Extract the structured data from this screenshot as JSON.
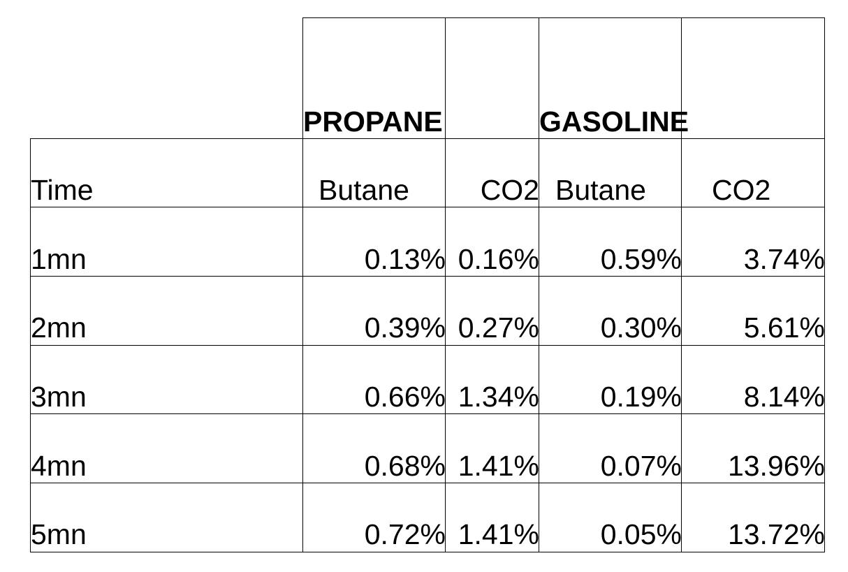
{
  "group_headers": [
    "PROPANE",
    "GASOLINE"
  ],
  "column_headers": [
    "Time",
    "Butane",
    "CO2",
    "Butane",
    "CO2"
  ],
  "rows": [
    [
      "1mn",
      "0.13%",
      "0.16%",
      "0.59%",
      "3.74%"
    ],
    [
      "2mn",
      "0.39%",
      "0.27%",
      "0.30%",
      "5.61%"
    ],
    [
      "3mn",
      "0.66%",
      "1.34%",
      "0.19%",
      "8.14%"
    ],
    [
      "4mn",
      "0.68%",
      "1.41%",
      "0.07%",
      "13.96%"
    ],
    [
      "5mn",
      "0.72%",
      "1.41%",
      "0.05%",
      "13.72%"
    ]
  ]
}
